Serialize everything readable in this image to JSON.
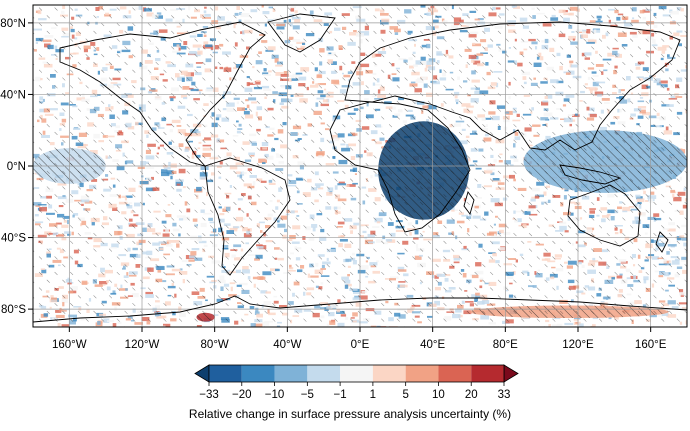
{
  "map": {
    "projection": "equirectangular",
    "lon_range": [
      -180,
      180
    ],
    "lat_range": [
      -90,
      90
    ],
    "gridlines": true,
    "x_ticks": [
      {
        "lon": -160,
        "label": "160°W"
      },
      {
        "lon": -120,
        "label": "120°W"
      },
      {
        "lon": -80,
        "label": "80°W"
      },
      {
        "lon": -40,
        "label": "40°W"
      },
      {
        "lon": 0,
        "label": "0°E"
      },
      {
        "lon": 40,
        "label": "40°E"
      },
      {
        "lon": 80,
        "label": "80°E"
      },
      {
        "lon": 120,
        "label": "120°E"
      },
      {
        "lon": 160,
        "label": "160°E"
      }
    ],
    "y_ticks": [
      {
        "lat": 80,
        "label": "80°N"
      },
      {
        "lat": 40,
        "label": "40°N"
      },
      {
        "lat": 0,
        "label": "0°N"
      },
      {
        "lat": -40,
        "label": "40°S"
      },
      {
        "lat": -80,
        "label": "80°S"
      }
    ],
    "features": [
      {
        "name": "strong-decrease",
        "lon": [
          10,
          60
        ],
        "lat": [
          -30,
          25
        ],
        "level": -33
      },
      {
        "name": "decrease-indian-ocean",
        "lon": [
          90,
          180
        ],
        "lat": [
          -15,
          20
        ],
        "level": -10
      },
      {
        "name": "decrease-tropical-pacific",
        "lon": [
          -180,
          -140
        ],
        "lat": [
          -10,
          10
        ],
        "level": -5
      },
      {
        "name": "increase-southern-ocean",
        "lon": [
          60,
          170
        ],
        "lat": [
          -85,
          -78
        ],
        "level": 5
      },
      {
        "name": "increase-antarctic",
        "lon": [
          -90,
          -80
        ],
        "lat": [
          -87,
          -82
        ],
        "level": 20
      }
    ]
  },
  "colorbar": {
    "title": "Relative change in surface pressure analysis uncertainty (%)",
    "levels": [
      "−33",
      "−20",
      "−10",
      "−5",
      "−1",
      "1",
      "5",
      "10",
      "20",
      "33"
    ],
    "colors": [
      "#1f5f9e",
      "#3b88c0",
      "#7fb2d7",
      "#c4dbed",
      "#f5f5f5",
      "#fbd6c5",
      "#f1a285",
      "#da6453",
      "#b52a2f"
    ],
    "extend_low_color": "#0d3f6e",
    "extend_high_color": "#7a0a1c"
  }
}
